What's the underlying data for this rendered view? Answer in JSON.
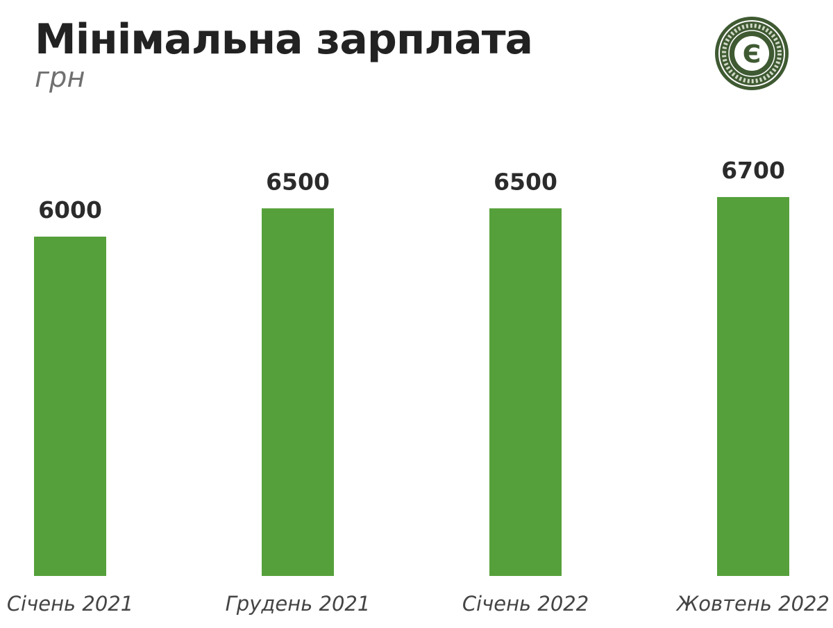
{
  "chart_data": {
    "type": "bar",
    "title": "Мінімальна зарплата",
    "subtitle": "грн",
    "categories": [
      "Січень 2021",
      "Грудень 2021",
      "Січень 2022",
      "Жовтень 2022"
    ],
    "values": [
      6000,
      6500,
      6500,
      6700
    ],
    "data_labels": [
      "6000",
      "6500",
      "6500",
      "6700"
    ],
    "grid": false,
    "bar_color": "#55a03a"
  },
  "logo": {
    "icon": "ekonomichna-pravda-seal-icon",
    "letter": "Є",
    "color": "#3f5a32"
  }
}
